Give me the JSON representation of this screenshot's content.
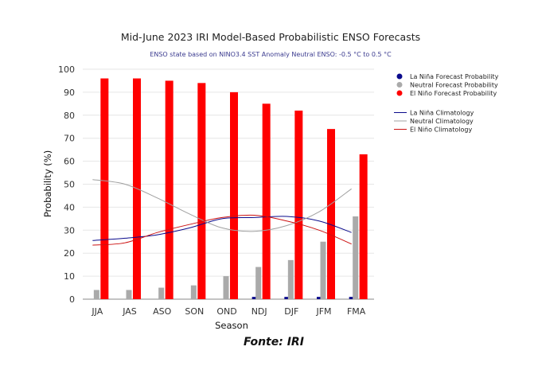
{
  "chart_data": {
    "type": "bar",
    "title": "Mid-June 2023 IRI Model-Based Probabilistic ENSO Forecasts",
    "subtitle": "ENSO state based on NINO3.4 SST Anomaly Neutral ENSO: -0.5 °C to 0.5 °C",
    "xlabel": "Season",
    "ylabel": "Probability (%)",
    "ylim": [
      0,
      100
    ],
    "yticks": [
      "0",
      "10",
      "20",
      "30",
      "40",
      "50",
      "60",
      "70",
      "80",
      "90",
      "100"
    ],
    "grid": true,
    "legend_position": "right",
    "categories": [
      "JJA",
      "JAS",
      "ASO",
      "SON",
      "OND",
      "NDJ",
      "DJF",
      "JFM",
      "FMA"
    ],
    "series": [
      {
        "name": "La Niña Forecast Probability",
        "kind": "bar",
        "color": "#0a0a8c",
        "values": [
          0,
          0,
          0,
          0,
          0,
          1,
          1,
          1,
          1
        ]
      },
      {
        "name": "Neutral Forecast Probability",
        "kind": "bar",
        "color": "#aaaaaa",
        "values": [
          4,
          4,
          5,
          6,
          10,
          14,
          17,
          25,
          36
        ]
      },
      {
        "name": "El Niño Forecast Probability",
        "kind": "bar",
        "color": "#ff0000",
        "values": [
          96,
          96,
          95,
          94,
          90,
          85,
          82,
          74,
          63
        ]
      },
      {
        "name": "La Niña Climatology",
        "kind": "line",
        "color": "#0a0a8c",
        "values": [
          25.5,
          26.5,
          28,
          31,
          35,
          35.5,
          36,
          34,
          29
        ]
      },
      {
        "name": "Neutral Climatology",
        "kind": "line",
        "color": "#a0a0a0",
        "values": [
          52,
          50,
          44,
          37,
          31,
          29.5,
          32,
          38,
          48
        ]
      },
      {
        "name": "El Niño Climatology",
        "kind": "line",
        "color": "#cc1111",
        "values": [
          23.5,
          24.5,
          29,
          32.5,
          35.5,
          36.5,
          34,
          30,
          24
        ]
      }
    ]
  },
  "source_note": "Fonte: IRI"
}
